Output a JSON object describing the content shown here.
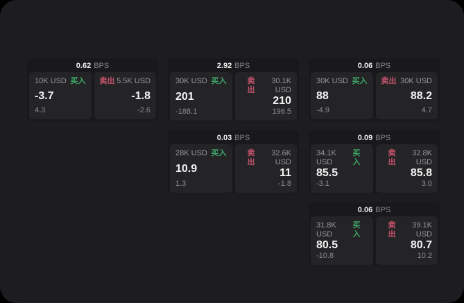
{
  "colors": {
    "buy": "#3fa566",
    "sell": "#c4526b",
    "panel_background": "#1d1d1f",
    "card_background": "#19191b",
    "sub_panel_background": "#242427"
  },
  "labels": {
    "buy": "买入",
    "sell": "卖出",
    "bps": "BPS"
  },
  "cards": [
    {
      "bps": "0.62",
      "buy": {
        "amount": "10K USD",
        "value": "-3.7",
        "sub": "4.3"
      },
      "sell": {
        "amount": "5.5K USD",
        "value": "-1.8",
        "sub": "-2.6"
      }
    },
    {
      "bps": "2.92",
      "buy": {
        "amount": "30K USD",
        "value": "201",
        "sub": "-188.1"
      },
      "sell": {
        "amount": "30.1K USD",
        "value": "210",
        "sub": "196.5"
      }
    },
    {
      "bps": "0.06",
      "buy": {
        "amount": "30K USD",
        "value": "88",
        "sub": "-4.9"
      },
      "sell": {
        "amount": "30K USD",
        "value": "88.2",
        "sub": "4.7"
      }
    },
    {
      "bps": "0.03",
      "buy": {
        "amount": "28K USD",
        "value": "10.9",
        "sub": "1.3"
      },
      "sell": {
        "amount": "32.6K USD",
        "value": "11",
        "sub": "-1.8"
      }
    },
    {
      "bps": "0.09",
      "buy": {
        "amount": "34.1K USD",
        "value": "85.5",
        "sub": "-3.1"
      },
      "sell": {
        "amount": "32.8K USD",
        "value": "85.8",
        "sub": "3.0"
      }
    },
    {
      "bps": "0.06",
      "buy": {
        "amount": "31.8K USD",
        "value": "80.5",
        "sub": "-10.8"
      },
      "sell": {
        "amount": "39.1K USD",
        "value": "80.7",
        "sub": "10.2"
      }
    }
  ]
}
